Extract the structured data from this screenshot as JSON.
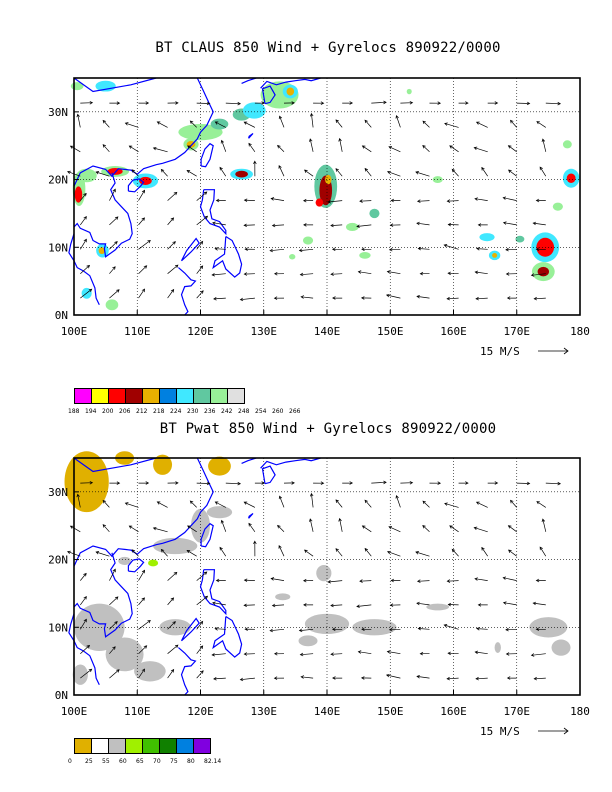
{
  "panels": [
    {
      "title": "BT CLAUS 850 Wind + Gyrelocs 890922/0000",
      "field": "CLAUS",
      "legend_values": [
        "188",
        "194",
        "200",
        "206",
        "212",
        "218",
        "224",
        "230",
        "236",
        "242",
        "248",
        "254",
        "260",
        "266"
      ],
      "legend_labels": [
        "188",
        "194",
        "200",
        "206",
        "212",
        "218",
        "224",
        "230",
        "236",
        "242",
        "248",
        "254",
        "260",
        "266"
      ],
      "legend_colors": [
        "#ff00ff",
        "#ffff00",
        "#ff0000",
        "#a00000",
        "#e8b000",
        "#0080e0",
        "#40e8ff",
        "#60c8a0",
        "#98f098",
        "#e0e0e0"
      ]
    },
    {
      "title": "BT Pwat 850 Wind + Gyrelocs 890922/0000",
      "field": "Pwat",
      "legend_labels": [
        "0",
        "25",
        "55",
        "60",
        "65",
        "70",
        "75",
        "80",
        "82.14"
      ],
      "legend_colors": [
        "#e0b000",
        "#ffffff",
        "#c0c0c0",
        "#a0f000",
        "#40c000",
        "#108000",
        "#0080e0",
        "#8000e0"
      ]
    }
  ],
  "axes": {
    "x_ticks": [
      "100E",
      "110E",
      "120E",
      "130E",
      "140E",
      "150E",
      "160E",
      "170E",
      "180"
    ],
    "y_ticks": [
      "0N",
      "10N",
      "20N",
      "30N"
    ],
    "lon_range": [
      100,
      180
    ],
    "lat_range": [
      0,
      35
    ]
  },
  "vector_scale": {
    "label": "15 M/S"
  },
  "colors": {
    "coast": "#0000ff",
    "frame": "#000000",
    "grid": "#000000"
  }
}
